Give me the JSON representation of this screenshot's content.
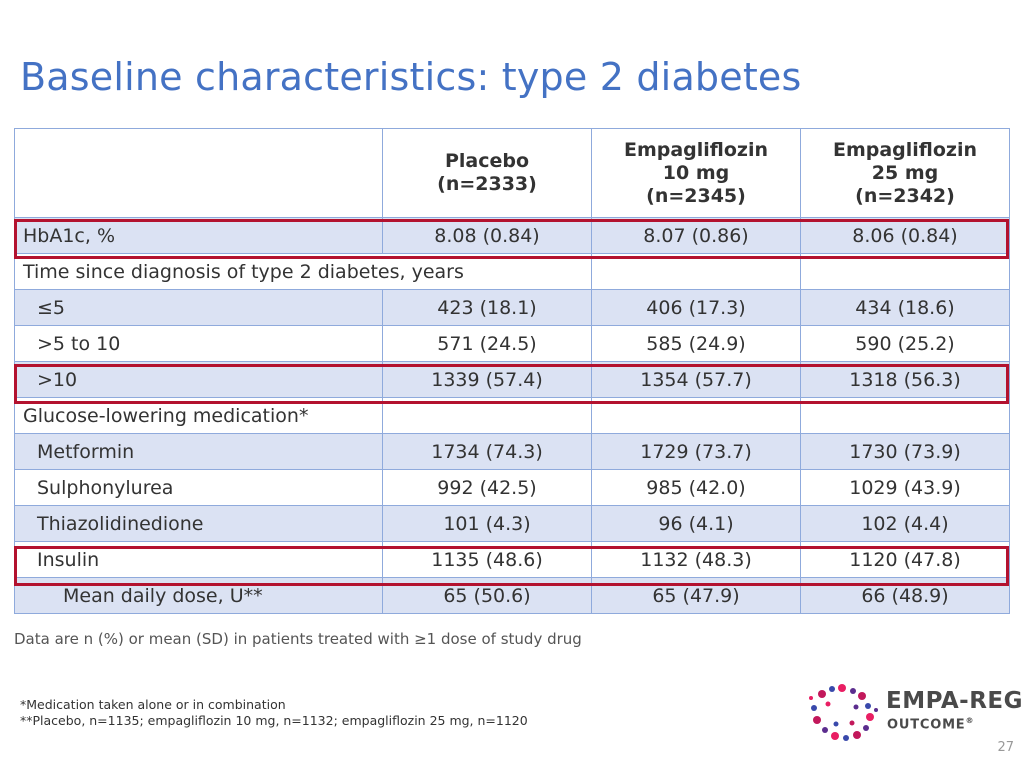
{
  "slide": {
    "title": "Baseline characteristics: type 2 diabetes",
    "page_number": "27"
  },
  "table": {
    "headers": {
      "placebo": [
        "Placebo",
        "(n=2333)"
      ],
      "empa10": [
        "Empagliflozin",
        "10 mg",
        "(n=2345)"
      ],
      "empa25": [
        "Empagliflozin",
        "25 mg",
        "(n=2342)"
      ]
    },
    "rows": [
      {
        "label": "HbA1c, %",
        "placebo": "8.08 (0.84)",
        "empa10": "8.07 (0.86)",
        "empa25": "8.06 (0.84)"
      },
      {
        "label": "Time since diagnosis of type 2 diabetes, years"
      },
      {
        "label": "≤5",
        "placebo": "423 (18.1)",
        "empa10": "406 (17.3)",
        "empa25": "434 (18.6)"
      },
      {
        "label": ">5 to 10",
        "placebo": "571 (24.5)",
        "empa10": "585 (24.9)",
        "empa25": "590 (25.2)"
      },
      {
        "label": ">10",
        "placebo": "1339 (57.4)",
        "empa10": "1354 (57.7)",
        "empa25": "1318 (56.3)"
      },
      {
        "label": "Glucose-lowering medication*"
      },
      {
        "label": "Metformin",
        "placebo": "1734 (74.3)",
        "empa10": "1729 (73.7)",
        "empa25": "1730 (73.9)"
      },
      {
        "label": "Sulphonylurea",
        "placebo": "992 (42.5)",
        "empa10": "985 (42.0)",
        "empa25": "1029 (43.9)"
      },
      {
        "label": "Thiazolidinedione",
        "placebo": "101 (4.3)",
        "empa10": "96 (4.1)",
        "empa25": "102 (4.4)"
      },
      {
        "label": "Insulin",
        "placebo": "1135 (48.6)",
        "empa10": "1132 (48.3)",
        "empa25": "1120 (47.8)"
      },
      {
        "label": "Mean daily dose, U**",
        "placebo": "65 (50.6)",
        "empa10": "65 (47.9)",
        "empa25": "66 (48.9)"
      }
    ]
  },
  "note": "Data are n (%) or mean (SD) in patients treated with ≥1 dose of study drug",
  "footnotes": [
    "*Medication taken alone or in combination",
    "**Placebo, n=1135; empagliflozin 10 mg, n=1132; empagliflozin 25 mg, n=1120"
  ],
  "logo": {
    "line1": "EMPA-REG",
    "line2": "OUTCOME",
    "mark": "®",
    "colors": [
      "#c2185b",
      "#5b2d8e",
      "#e91e63",
      "#3949ab"
    ]
  }
}
